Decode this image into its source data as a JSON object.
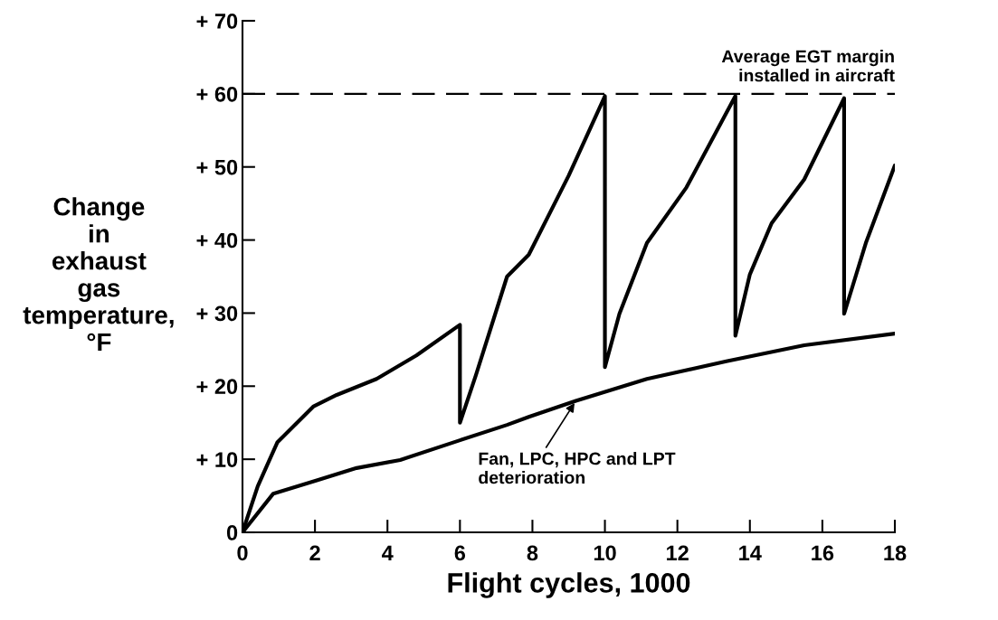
{
  "chart_data": {
    "type": "line",
    "xlabel": "Flight cycles, 1000",
    "ylabel": "Change\nin\nexhaust\ngas\ntemperature,\n°F",
    "xlim": [
      0,
      18
    ],
    "xticks": [
      0,
      2,
      4,
      6,
      8,
      10,
      12,
      14,
      16,
      18
    ],
    "ylim": [
      0,
      70
    ],
    "yticks": [
      0,
      {
        "value": 10,
        "label": "+ 10"
      },
      {
        "value": 20,
        "label": "+ 20"
      },
      {
        "value": 30,
        "label": "+ 30"
      },
      {
        "value": 40,
        "label": "+ 40"
      },
      {
        "value": 50,
        "label": "+ 50"
      },
      {
        "value": 60,
        "label": "+ 60"
      },
      {
        "value": 70,
        "label": "+ 70"
      }
    ],
    "grid": false,
    "legend": false,
    "marker": "none",
    "line_style": "solid",
    "series": [
      {
        "color": "#000000",
        "x": [
          0,
          0.42,
          0.96,
          1.95,
          2.6,
          3.7,
          4.8,
          6.0,
          6.0,
          6.44,
          7.3,
          7.9,
          9.0,
          10.0,
          10.0,
          10.4,
          11.16,
          12.25,
          13.6,
          13.6,
          14.0,
          14.6,
          15.5,
          16.6,
          16.6,
          17.2,
          18.0
        ],
        "values": [
          0,
          6.3,
          12.3,
          17.2,
          18.8,
          21,
          24.2,
          28.4,
          15,
          21.5,
          35,
          38,
          48.8,
          59.7,
          22.6,
          29.9,
          39.6,
          47.2,
          59.7,
          26.9,
          35.3,
          42.3,
          48.3,
          59.4,
          29.9,
          39.6,
          50.2
        ]
      },
      {
        "color": "#000000",
        "x": [
          0,
          0.85,
          2.05,
          3.15,
          4.35,
          6.0,
          7.3,
          7.9,
          9.2,
          11.16,
          13.35,
          15.5,
          18.0
        ],
        "values": [
          0,
          5.3,
          7.1,
          8.8,
          9.9,
          12.6,
          14.7,
          15.8,
          18.0,
          21.0,
          23.4,
          25.6,
          27.2
        ]
      }
    ],
    "ref_lines": [
      {
        "axis": "y",
        "value": 60,
        "label": "Average EGT margin\ninstalled in aircraft",
        "color": "#000000",
        "line_style": "dashed"
      }
    ],
    "annotations": [
      {
        "text": "Fan, LPC, HPC and LPT\ndeterioration",
        "x": 9.2,
        "y": 18.0
      }
    ]
  }
}
